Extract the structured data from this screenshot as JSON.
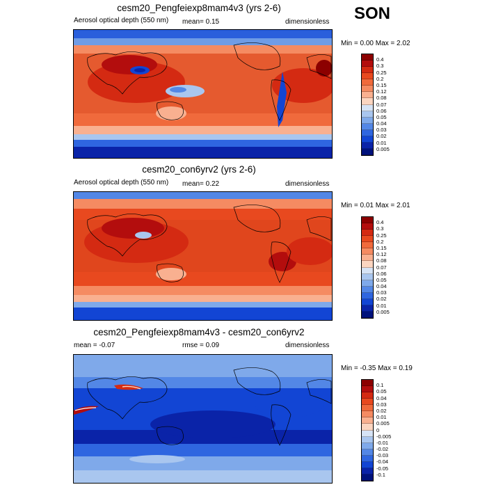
{
  "season": "SON",
  "panels": [
    {
      "title": "cesm20_Pengfeiexp8mam4v3 (yrs 2-6)",
      "left": "Aerosol optical depth (550 nm)",
      "center": "mean=   0.15",
      "right": "dimensionless",
      "minmax": "Min =   0.00 Max =   2.02",
      "levels": [
        "0.4",
        "0.3",
        "0.25",
        "0.2",
        "0.15",
        "0.12",
        "0.08",
        "0.07",
        "0.06",
        "0.05",
        "0.04",
        "0.03",
        "0.02",
        "0.01",
        "0.005"
      ],
      "colors": [
        "#8c0000",
        "#b30d0d",
        "#d42a12",
        "#e8491f",
        "#f06a3c",
        "#f58b62",
        "#f9b090",
        "#fbd5c0",
        "#d6e3f5",
        "#a9c6ef",
        "#7fa9ea",
        "#5387e6",
        "#2f66e0",
        "#1245d4",
        "#0a23a8",
        "#00127c"
      ]
    },
    {
      "title": "cesm20_con6yrv2 (yrs 2-6)",
      "left": "Aerosol optical depth (550 nm)",
      "center": "mean=   0.22",
      "right": "dimensionless",
      "minmax": "Min =   0.01 Max =   2.01",
      "levels": [
        "0.4",
        "0.3",
        "0.25",
        "0.2",
        "0.15",
        "0.12",
        "0.08",
        "0.07",
        "0.06",
        "0.05",
        "0.04",
        "0.03",
        "0.02",
        "0.01",
        "0.005"
      ],
      "colors": [
        "#8c0000",
        "#b30d0d",
        "#d42a12",
        "#e8491f",
        "#f06a3c",
        "#f58b62",
        "#f9b090",
        "#fbd5c0",
        "#d6e3f5",
        "#a9c6ef",
        "#7fa9ea",
        "#5387e6",
        "#2f66e0",
        "#1245d4",
        "#0a23a8",
        "#00127c"
      ]
    },
    {
      "title": "cesm20_Pengfeiexp8mam4v3 - cesm20_con6yrv2",
      "left": "mean =  -0.07",
      "center": "rmse =   0.09",
      "right": "dimensionless",
      "minmax": "Min =  -0.35 Max =   0.19",
      "levels": [
        "0.1",
        "0.05",
        "0.04",
        "0.03",
        "0.02",
        "0.01",
        "0.005",
        "0",
        "-0.005",
        "-0.01",
        "-0.02",
        "-0.03",
        "-0.04",
        "-0.05",
        "-0.1"
      ],
      "colors": [
        "#8c0000",
        "#b30d0d",
        "#d42a12",
        "#e8491f",
        "#f06a3c",
        "#f58b62",
        "#f9b090",
        "#fbd5c0",
        "#d6e3f5",
        "#a9c6ef",
        "#7fa9ea",
        "#5387e6",
        "#2f66e0",
        "#1245d4",
        "#0a23a8",
        "#00127c"
      ]
    }
  ]
}
